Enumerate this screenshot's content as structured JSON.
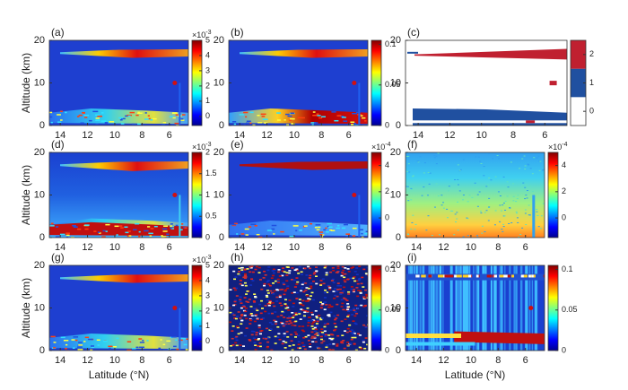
{
  "xlim": [
    14.8,
    4.6
  ],
  "ylim": [
    0,
    20
  ],
  "xticks": [
    14,
    12,
    10,
    8,
    6
  ],
  "yticks": [
    0,
    10,
    20
  ],
  "xlabel": "Latitude (°N)",
  "ylabel": "Altitude (km)",
  "panels": [
    {
      "label": "(a)",
      "clim": [
        -0.6,
        5
      ],
      "cticks": [
        0,
        1,
        2,
        3,
        4,
        5
      ],
      "cbar_exponent": {
        "base": "×10",
        "exponent": "-3"
      }
    },
    {
      "label": "(b)",
      "clim": [
        0,
        0.105
      ],
      "cticks": [
        0,
        0.05,
        0.1
      ]
    },
    {
      "label": "(c)",
      "clim": [
        -0.5,
        2.5
      ],
      "cticks": [
        0,
        1,
        2
      ]
    },
    {
      "label": "(d)",
      "clim": [
        0,
        2
      ],
      "cticks": [
        0,
        0.5,
        1,
        1.5,
        2
      ],
      "cbar_exponent": {
        "base": "×10",
        "exponent": "-3"
      }
    },
    {
      "label": "(e)",
      "clim": [
        -1.5,
        5
      ],
      "cticks": [
        0,
        2,
        4
      ],
      "cbar_exponent": {
        "base": "×10",
        "exponent": "-4"
      }
    },
    {
      "label": "(f)",
      "clim": [
        -1.5,
        5
      ],
      "cticks": [
        0,
        2,
        4
      ],
      "cbar_exponent": {
        "base": "×10",
        "exponent": "-4"
      }
    },
    {
      "label": "(g)",
      "clim": [
        -0.6,
        5
      ],
      "cticks": [
        0,
        1,
        2,
        3,
        4,
        5
      ],
      "cbar_exponent": {
        "base": "×10",
        "exponent": "-3"
      }
    },
    {
      "label": "(h)",
      "clim": [
        0,
        0.105
      ],
      "cticks": [
        0,
        0.05,
        0.1
      ]
    },
    {
      "label": "(i)",
      "clim": [
        0,
        0.105
      ],
      "cticks": [
        0,
        0.05,
        0.1
      ]
    }
  ]
}
